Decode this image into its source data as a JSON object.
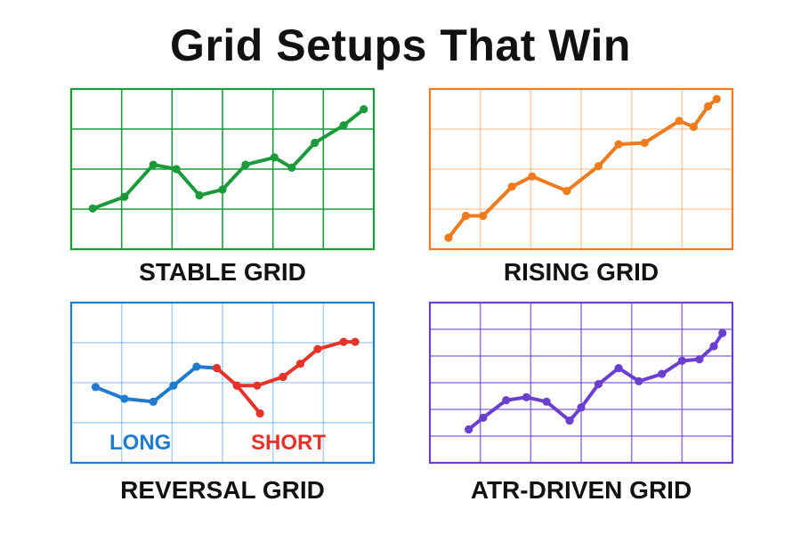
{
  "title": "Grid Setups That Win",
  "panels": {
    "stable": {
      "label": "STABLE GRID"
    },
    "rising": {
      "label": "RISING GRID"
    },
    "reversal": {
      "label": "REVERSAL GRID",
      "long_tag": "LONG",
      "short_tag": "SHORT"
    },
    "atr": {
      "label": "ATR-DRIVEN GRID"
    }
  },
  "colors": {
    "stable": "#1a9a3a",
    "rising": "#f07a1c",
    "reversal_long": "#1e7bd0",
    "reversal_short": "#e63329",
    "atr": "#6a3fd0"
  },
  "chart_data": [
    {
      "type": "line",
      "title": "STABLE GRID",
      "grid": true,
      "xlim": [
        0,
        10
      ],
      "ylim": [
        0,
        10
      ],
      "series": [
        {
          "x": [
            0.5,
            1.6,
            2.6,
            3.4,
            4.2,
            5.0,
            5.8,
            6.8,
            7.4,
            8.2,
            9.2,
            9.9
          ],
          "y": [
            2.3,
            3.1,
            5.3,
            5.0,
            3.2,
            3.6,
            5.3,
            5.8,
            5.1,
            6.8,
            8.0,
            9.1
          ]
        }
      ]
    },
    {
      "type": "line",
      "title": "RISING GRID",
      "grid": true,
      "xlim": [
        0,
        10
      ],
      "ylim": [
        0,
        10
      ],
      "series": [
        {
          "x": [
            0.4,
            1.0,
            1.6,
            2.6,
            3.3,
            4.5,
            5.6,
            6.3,
            7.2,
            8.4,
            8.9,
            9.4,
            9.7
          ],
          "y": [
            0.3,
            1.8,
            1.8,
            3.8,
            4.5,
            3.5,
            5.2,
            6.7,
            6.8,
            8.3,
            7.9,
            9.3,
            9.8
          ]
        }
      ]
    },
    {
      "type": "line",
      "title": "REVERSAL GRID",
      "grid": true,
      "xlim": [
        0,
        10
      ],
      "ylim": [
        0,
        10
      ],
      "series": [
        {
          "x": [
            0.6,
            1.6,
            2.6,
            3.3,
            4.1,
            4.8
          ],
          "y": [
            4.7,
            3.9,
            3.7,
            4.8,
            6.1,
            6.0
          ]
        },
        {
          "x": [
            4.8,
            5.5,
            6.2,
            7.1
          ],
          "y": [
            6.0,
            4.8,
            4.8,
            5.4
          ]
        },
        {
          "x": [
            7.1,
            7.7,
            8.3,
            9.2,
            9.6
          ],
          "y": [
            5.4,
            6.3,
            7.3,
            7.8,
            7.8
          ]
        },
        {
          "x": [
            5.5,
            6.3
          ],
          "y": [
            4.8,
            2.9
          ]
        }
      ]
    },
    {
      "type": "line",
      "title": "ATR-DRIVEN GRID",
      "grid": true,
      "xlim": [
        0,
        10
      ],
      "ylim": [
        0,
        10
      ],
      "series": [
        {
          "x": [
            1.1,
            1.6,
            2.4,
            3.1,
            3.8,
            4.6,
            5.0,
            5.6,
            6.3,
            7.0,
            7.8,
            8.5,
            9.1,
            9.6,
            9.9
          ],
          "y": [
            1.8,
            2.6,
            3.8,
            4.0,
            3.7,
            2.4,
            3.3,
            4.9,
            6.0,
            5.1,
            5.6,
            6.5,
            6.6,
            7.5,
            8.4
          ]
        }
      ]
    }
  ]
}
